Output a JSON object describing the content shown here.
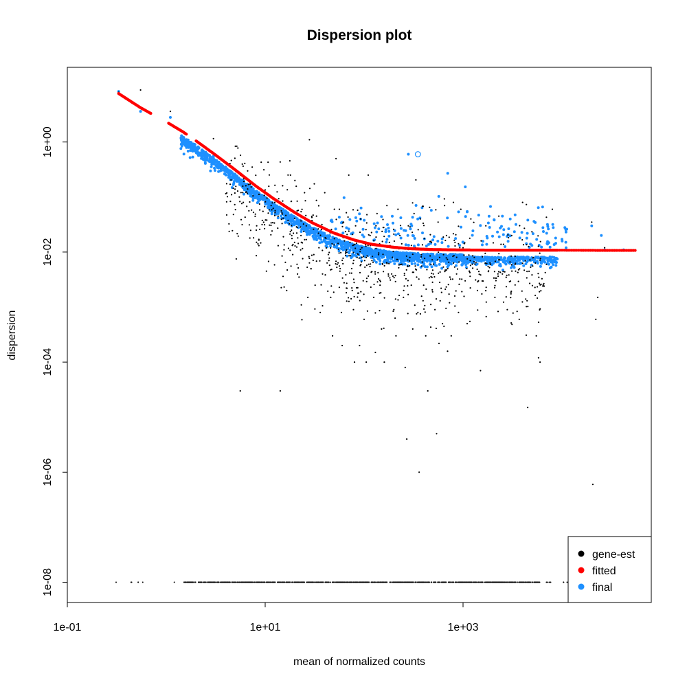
{
  "chart_data": {
    "type": "scatter",
    "title": "Dispersion plot",
    "xlabel": "mean of normalized counts",
    "ylabel": "dispersion",
    "x_scale": "log10",
    "y_scale": "log10",
    "xlim": [
      0.1,
      100000
    ],
    "ylim": [
      1e-08,
      10.0
    ],
    "x_ticks": [
      {
        "value": 0.1,
        "label": "1e-01"
      },
      {
        "value": 10,
        "label": "1e+01"
      },
      {
        "value": 1000,
        "label": "1e+03"
      }
    ],
    "y_ticks": [
      {
        "value": 1e-08,
        "label": "1e-08"
      },
      {
        "value": 1e-06,
        "label": "1e-06"
      },
      {
        "value": 0.0001,
        "label": "1e-04"
      },
      {
        "value": 0.01,
        "label": "1e-02"
      },
      {
        "value": 1,
        "label": "1e+00"
      }
    ],
    "grid": false,
    "legend_position": "bottom-right",
    "series": [
      {
        "name": "gene-est",
        "color": "#000000",
        "note_values": "sampled representative points",
        "points": [
          [
            0.33,
            8.0
          ],
          [
            0.55,
            8.8
          ],
          [
            1.1,
            3.6
          ],
          [
            3.0,
            1.15
          ],
          [
            6.0,
            0.08
          ],
          [
            5.1,
            0.0075
          ],
          [
            5.6,
            3e-05
          ],
          [
            7.0,
            0.018
          ],
          [
            8.2,
            0.03
          ],
          [
            9.5,
            0.055
          ],
          [
            10.3,
            0.0045
          ],
          [
            11.5,
            0.07
          ],
          [
            12.5,
            0.08
          ],
          [
            13.5,
            0.045
          ],
          [
            14.2,
            3e-05
          ],
          [
            15.0,
            0.16
          ],
          [
            15.5,
            0.011
          ],
          [
            16.0,
            0.0065
          ],
          [
            16.5,
            0.002
          ],
          [
            18.0,
            0.25
          ],
          [
            19.0,
            0.009
          ],
          [
            20.0,
            0.2
          ],
          [
            21.0,
            0.006
          ],
          [
            22.0,
            0.0035
          ],
          [
            23.0,
            0.02
          ],
          [
            24.0,
            0.042
          ],
          [
            25.0,
            0.12
          ],
          [
            26.0,
            0.03
          ],
          [
            27.0,
            0.0015
          ],
          [
            28.0,
            1.1
          ],
          [
            29.0,
            0.005
          ],
          [
            31.0,
            0.009
          ],
          [
            32.0,
            0.0025
          ],
          [
            33.0,
            0.045
          ],
          [
            35.0,
            0.012
          ],
          [
            36.0,
            0.0008
          ],
          [
            38.0,
            0.004
          ],
          [
            40.0,
            0.12
          ],
          [
            42.0,
            0.025
          ],
          [
            44.0,
            0.007
          ],
          [
            46.0,
            0.0015
          ],
          [
            48.0,
            0.0003
          ],
          [
            50.0,
            0.06
          ],
          [
            52.0,
            0.5
          ],
          [
            55.0,
            0.02
          ],
          [
            57.0,
            0.0045
          ],
          [
            59.0,
            0.0008
          ],
          [
            60.0,
            0.0002
          ],
          [
            62.0,
            0.035
          ],
          [
            65.0,
            0.01
          ],
          [
            67.0,
            0.0022
          ],
          [
            70.0,
            0.25
          ],
          [
            72.0,
            0.015
          ],
          [
            75.0,
            0.005
          ],
          [
            78.0,
            0.0009
          ],
          [
            80.0,
            0.0001
          ],
          [
            82.0,
            0.03
          ],
          [
            85.0,
            0.008
          ],
          [
            88.0,
            0.0018
          ],
          [
            90.0,
            0.0002
          ],
          [
            92.0,
            0.04
          ],
          [
            95.0,
            0.012
          ],
          [
            98.0,
            0.003
          ],
          [
            100.0,
            0.0006
          ],
          [
            105.0,
            0.0001
          ],
          [
            110.0,
            0.25
          ],
          [
            115.0,
            0.02
          ],
          [
            120.0,
            0.007
          ],
          [
            125.0,
            0.0015
          ],
          [
            130.0,
            0.00015
          ],
          [
            135.0,
            0.05
          ],
          [
            140.0,
            0.009
          ],
          [
            145.0,
            0.0025
          ],
          [
            150.0,
            0.0004
          ],
          [
            160.0,
            0.0001
          ],
          [
            170.0,
            0.07
          ],
          [
            180.0,
            0.015
          ],
          [
            190.0,
            0.004
          ],
          [
            200.0,
            0.0009
          ],
          [
            210.0,
            0.0003
          ],
          [
            220.0,
            0.06
          ],
          [
            230.0,
            0.02
          ],
          [
            240.0,
            0.006
          ],
          [
            250.0,
            0.0015
          ],
          [
            260.0,
            8e-05
          ],
          [
            270.0,
            4e-06
          ],
          [
            280.0,
            0.03
          ],
          [
            290.0,
            0.008
          ],
          [
            300.0,
            0.0025
          ],
          [
            310.0,
            0.0004
          ],
          [
            320.0,
            0.05
          ],
          [
            330.0,
            0.012
          ],
          [
            340.0,
            0.0035
          ],
          [
            350.0,
            0.0008
          ],
          [
            360.0,
            1e-06
          ],
          [
            370.0,
            0.04
          ],
          [
            380.0,
            0.009
          ],
          [
            400.0,
            0.0025
          ],
          [
            420.0,
            0.0003
          ],
          [
            440.0,
            3e-05
          ],
          [
            460.0,
            0.065
          ],
          [
            480.0,
            0.015
          ],
          [
            500.0,
            0.004
          ],
          [
            520.0,
            0.0009
          ],
          [
            540.0,
            5e-06
          ],
          [
            560.0,
            0.035
          ],
          [
            580.0,
            0.008
          ],
          [
            600.0,
            0.0022
          ],
          [
            620.0,
            0.0005
          ],
          [
            650.0,
            0.07
          ],
          [
            680.0,
            0.02
          ],
          [
            700.0,
            0.005
          ],
          [
            730.0,
            0.0012
          ],
          [
            760.0,
            0.0003
          ],
          [
            800.0,
            0.08
          ],
          [
            830.0,
            0.015
          ],
          [
            860.0,
            0.004
          ],
          [
            900.0,
            0.0008
          ],
          [
            950.0,
            0.06
          ],
          [
            1000.0,
            0.012
          ],
          [
            1050.0,
            0.003
          ],
          [
            1100.0,
            0.0005
          ],
          [
            1200.0,
            0.04
          ],
          [
            1300.0,
            0.008
          ],
          [
            1400.0,
            0.002
          ],
          [
            1500.0,
            7e-05
          ],
          [
            1700.0,
            0.03
          ],
          [
            1900.0,
            0.006
          ],
          [
            2100.0,
            0.0015
          ],
          [
            2300.0,
            0.045
          ],
          [
            2500.0,
            0.004
          ],
          [
            2800.0,
            0.0009
          ],
          [
            3100.0,
            0.02
          ],
          [
            3400.0,
            0.0045
          ],
          [
            3700.0,
            0.0006
          ],
          [
            4000.0,
            0.08
          ],
          [
            4300.0,
            0.0014
          ],
          [
            4500.0,
            1.5e-05
          ],
          [
            5500.0,
            0.0003
          ],
          [
            5800.0,
            0.00012
          ],
          [
            6000.0,
            0.0001
          ],
          [
            8000.0,
            0.06
          ],
          [
            20000.0,
            0.035
          ],
          [
            22000.0,
            0.0006
          ],
          [
            23000.0,
            0.0015
          ],
          [
            20500.0,
            6e-07
          ],
          [
            27000.0,
            0.012
          ],
          [
            42000.0,
            0.011
          ],
          [
            55000.0,
            0.011
          ]
        ]
      },
      {
        "name": "fitted",
        "color": "#ff0000",
        "curve": [
          [
            0.33,
            7.6
          ],
          [
            0.55,
            4.2
          ],
          [
            1.1,
            2.1
          ],
          [
            1.5,
            1.5
          ],
          [
            2.0,
            1.05
          ],
          [
            3.0,
            0.62
          ],
          [
            5.0,
            0.31
          ],
          [
            8.0,
            0.16
          ],
          [
            12.0,
            0.095
          ],
          [
            20.0,
            0.052
          ],
          [
            30.0,
            0.034
          ],
          [
            50.0,
            0.022
          ],
          [
            80.0,
            0.0165
          ],
          [
            120.0,
            0.0138
          ],
          [
            200.0,
            0.0122
          ],
          [
            300.0,
            0.0115
          ],
          [
            500.0,
            0.0111
          ],
          [
            1000.0,
            0.0109
          ],
          [
            3000.0,
            0.0108
          ],
          [
            10000.0,
            0.0108
          ],
          [
            30000.0,
            0.0107
          ],
          [
            55000.0,
            0.0107
          ]
        ]
      },
      {
        "name": "final",
        "color": "#1e90ff",
        "note_values": "sampled representative points",
        "points": [
          [
            0.33,
            8.3
          ],
          [
            0.55,
            3.6
          ],
          [
            1.1,
            2.8
          ],
          [
            3.0,
            0.55
          ],
          [
            280.0,
            0.6
          ],
          [
            700.0,
            0.27
          ],
          [
            2500.0,
            0.045
          ],
          [
            3000.0,
            0.04
          ],
          [
            7000.0,
            0.022
          ],
          [
            11000.0,
            0.012
          ],
          [
            20000.0,
            0.03
          ],
          [
            25000.0,
            0.02
          ],
          [
            27000.0,
            0.011
          ],
          [
            42000.0,
            0.011
          ]
        ]
      }
    ]
  }
}
